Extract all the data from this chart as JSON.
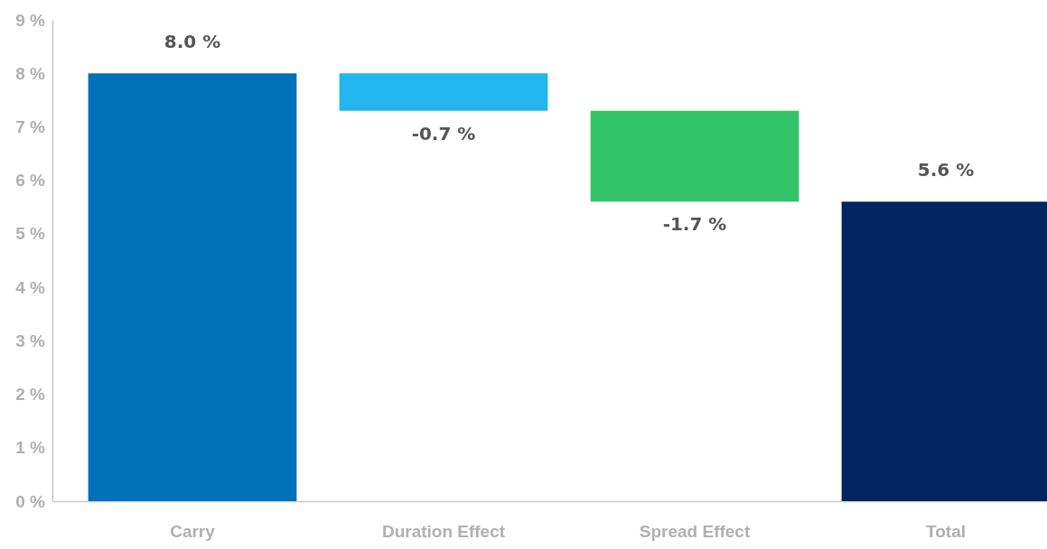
{
  "chart_data": {
    "type": "bar",
    "categories": [
      "Carry",
      "Duration Effect",
      "Spread Effect",
      "Total"
    ],
    "values": [
      8.0,
      -0.7,
      -1.7,
      5.6
    ],
    "base": [
      0,
      8.0,
      7.3,
      0
    ],
    "colors": [
      "#0070b8",
      "#22b5ee",
      "#33c46a",
      "#002560"
    ],
    "value_labels": [
      "8.0 %",
      "-0.7 %",
      "-1.7 %",
      "5.6 %"
    ],
    "ylim": [
      0,
      9
    ],
    "yticks": [
      {
        "value": 0,
        "label": "0 %"
      },
      {
        "value": 1,
        "label": "1 %"
      },
      {
        "value": 2,
        "label": "2 %"
      },
      {
        "value": 3,
        "label": "3 %"
      },
      {
        "value": 4,
        "label": "4 %"
      },
      {
        "value": 5,
        "label": "5 %"
      },
      {
        "value": 6,
        "label": "6 %"
      },
      {
        "value": 7,
        "label": "7 %"
      },
      {
        "value": 8,
        "label": "8 %"
      },
      {
        "value": 9,
        "label": "9 %"
      }
    ],
    "grid": false
  }
}
